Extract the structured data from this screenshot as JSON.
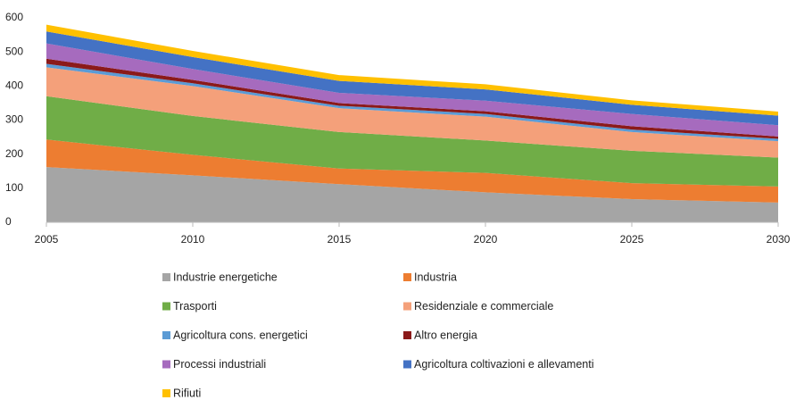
{
  "chart_data": {
    "type": "area",
    "stacked": true,
    "x": [
      2005,
      2010,
      2015,
      2020,
      2025,
      2030
    ],
    "xlim": [
      2005,
      2030
    ],
    "xticks": [
      2005,
      2010,
      2015,
      2020,
      2025,
      2030
    ],
    "ylim": [
      0,
      600
    ],
    "yticks": [
      0,
      100,
      200,
      300,
      400,
      500,
      600
    ],
    "grid": false,
    "legend": "bottom",
    "series": [
      {
        "name": "Industrie energetiche",
        "color": "#a5a5a5",
        "values": [
          162,
          138,
          112,
          88,
          68,
          58
        ]
      },
      {
        "name": "Industria",
        "color": "#ed7d31",
        "values": [
          81,
          60,
          46,
          57,
          47,
          47
        ]
      },
      {
        "name": "Trasporti",
        "color": "#70ad47",
        "values": [
          127,
          114,
          107,
          95,
          95,
          85
        ]
      },
      {
        "name": "Residenziale e commerciale",
        "color": "#f4a07a",
        "values": [
          85,
          88,
          70,
          70,
          55,
          48
        ]
      },
      {
        "name": "Agricoltura cons. energetici",
        "color": "#5b9bd5",
        "values": [
          10,
          8,
          7,
          8,
          7,
          7
        ]
      },
      {
        "name": "Altro energia",
        "color": "#8b1a1a",
        "values": [
          15,
          10,
          8,
          8,
          10,
          7
        ]
      },
      {
        "name": "Processi industriali",
        "color": "#a66bbe",
        "values": [
          45,
          32,
          30,
          31,
          36,
          33
        ]
      },
      {
        "name": "Agricoltura coltivazioni e allevamenti",
        "color": "#4472c4",
        "values": [
          35,
          35,
          35,
          33,
          27,
          28
        ]
      },
      {
        "name": "Rifiuti",
        "color": "#ffc000",
        "values": [
          20,
          18,
          17,
          15,
          13,
          12
        ]
      }
    ]
  }
}
